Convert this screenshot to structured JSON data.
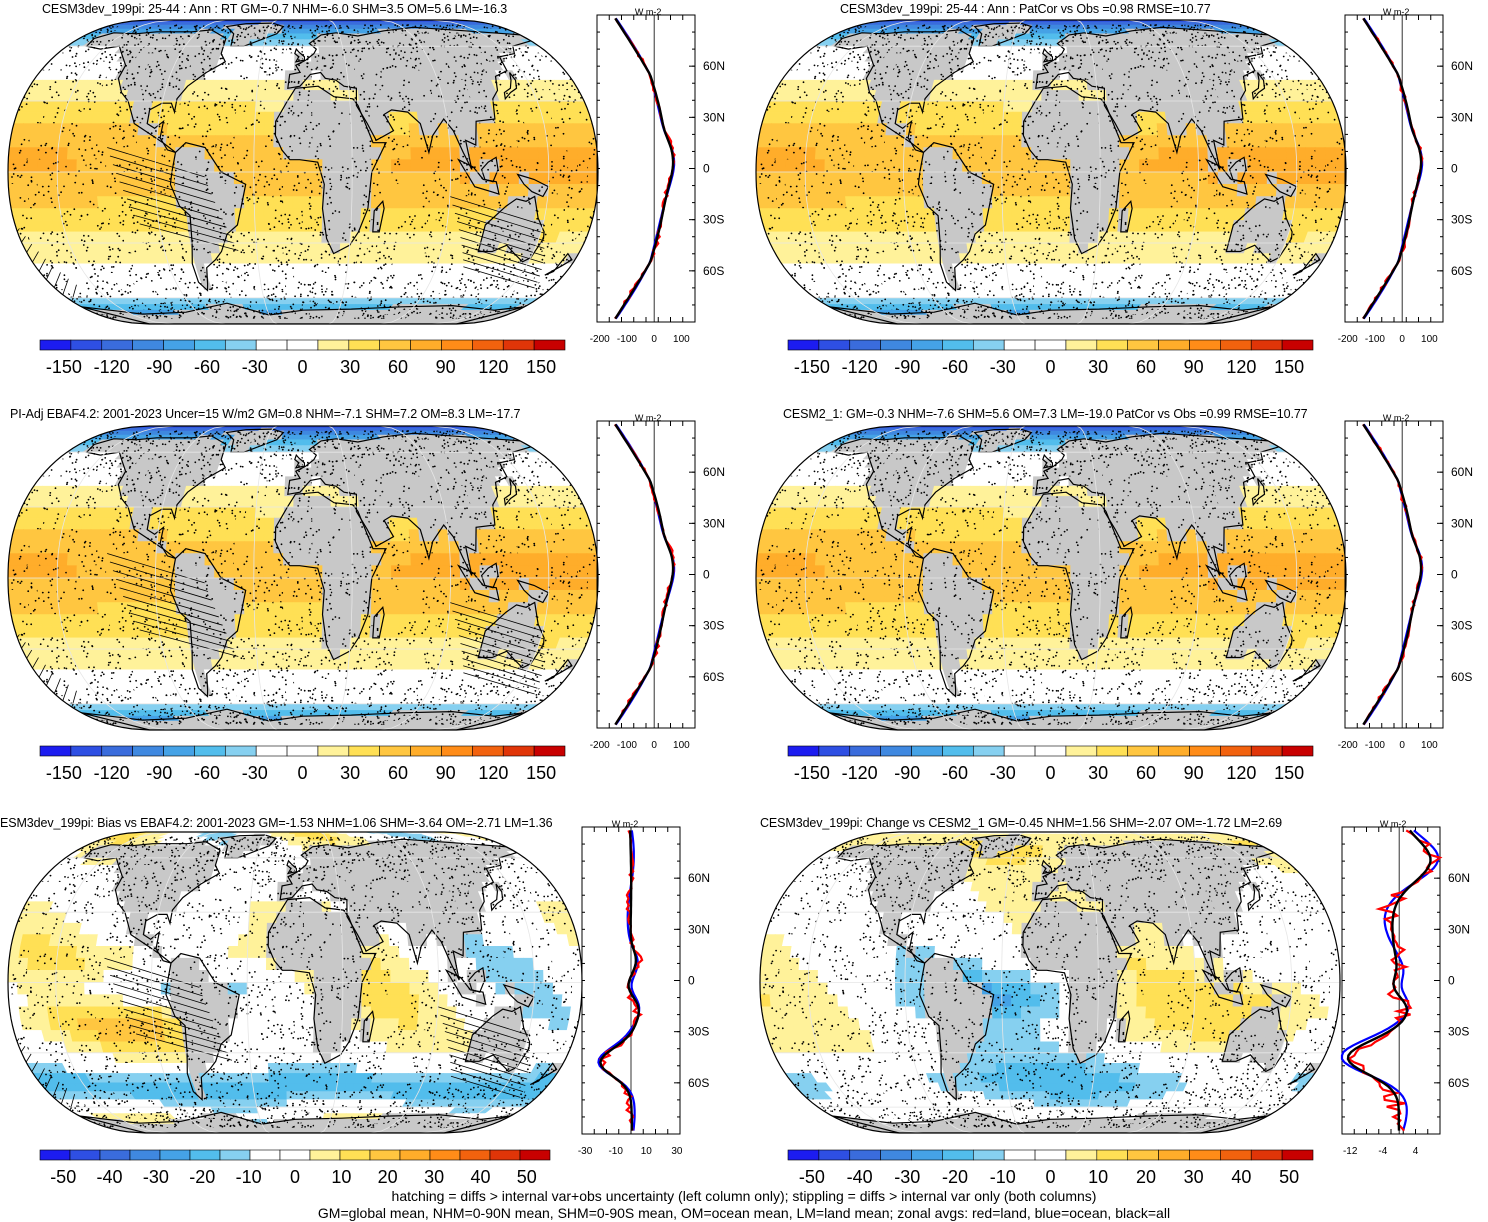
{
  "panels": [
    {
      "title": "CESM3dev_199pi: 25-44 : Ann : RT GM=-0.7 NHM=-6.0 SHM=3.5 OM=5.6 LM=-16.3",
      "colorbar_ticks": [
        "-150",
        "-120",
        "-90",
        "-60",
        "-30",
        "0",
        "30",
        "60",
        "90",
        "120",
        "150"
      ],
      "zonal_xticks": [
        "-200",
        "-100",
        "0",
        "100"
      ],
      "zonal_units": "W m-2",
      "field": "rt",
      "hatch": true,
      "cmap": "main"
    },
    {
      "title": "CESM3dev_199pi: 25-44 : Ann : PatCor vs Obs =0.98 RMSE=10.77",
      "colorbar_ticks": [
        "-150",
        "-120",
        "-90",
        "-60",
        "-30",
        "0",
        "30",
        "60",
        "90",
        "120",
        "150"
      ],
      "zonal_xticks": [
        "-200",
        "-100",
        "0",
        "100"
      ],
      "zonal_units": "W m-2",
      "field": "rt",
      "hatch": false,
      "cmap": "main"
    },
    {
      "title": "PI-Adj EBAF4.2: 2001-2023 Uncer=15 W/m2 GM=0.8 NHM=-7.1 SHM=7.2 OM=8.3 LM=-17.7",
      "colorbar_ticks": [
        "-150",
        "-120",
        "-90",
        "-60",
        "-30",
        "0",
        "30",
        "60",
        "90",
        "120",
        "150"
      ],
      "zonal_xticks": [
        "-200",
        "-100",
        "0",
        "100"
      ],
      "zonal_units": "W m-2",
      "field": "rt",
      "hatch": true,
      "cmap": "main"
    },
    {
      "title": "CESM2_1: GM=-0.3 NHM=-7.6 SHM=5.6 OM=7.3 LM=-19.0 PatCor vs Obs =0.99 RMSE=10.77",
      "colorbar_ticks": [
        "-150",
        "-120",
        "-90",
        "-60",
        "-30",
        "0",
        "30",
        "60",
        "90",
        "120",
        "150"
      ],
      "zonal_xticks": [
        "-200",
        "-100",
        "0",
        "100"
      ],
      "zonal_units": "W m-2",
      "field": "rt",
      "hatch": false,
      "cmap": "main"
    },
    {
      "title": "ESM3dev_199pi: Bias vs EBAF4.2: 2001-2023 GM=-1.53 NHM=1.06 SHM=-3.64 OM=-2.71 LM=1.36",
      "colorbar_ticks": [
        "-50",
        "-40",
        "-30",
        "-20",
        "-10",
        "0",
        "10",
        "20",
        "30",
        "40",
        "50"
      ],
      "zonal_xticks": [
        "-30",
        "-10",
        "10",
        "30"
      ],
      "zonal_units": "W m-2",
      "field": "bias",
      "hatch": true,
      "cmap": "diff"
    },
    {
      "title": "CESM3dev_199pi: Change vs CESM2_1 GM=-0.45 NHM=1.56 SHM=-2.07 OM=-1.72 LM=2.69",
      "colorbar_ticks": [
        "-50",
        "-40",
        "-30",
        "-20",
        "-10",
        "0",
        "10",
        "20",
        "30",
        "40",
        "50"
      ],
      "zonal_xticks": [
        "-12",
        "-4",
        "4"
      ],
      "zonal_units": "W m-2",
      "field": "change",
      "hatch": false,
      "cmap": "diff"
    }
  ],
  "lat_ticks": [
    "60N",
    "30N",
    "0",
    "30S",
    "60S"
  ],
  "footer": {
    "line1": "hatching = diffs > internal var+obs uncertainty (left column only); stippling = diffs > internal var only (both columns)",
    "line2": "GM=global mean, NHM=0-90N mean, SHM=0-90S mean, OM=ocean mean, LM=land mean; zonal avgs: red=land, blue=ocean, black=all"
  },
  "colors": {
    "colormap_colors": [
      "#1c1cf0",
      "#2e4fe3",
      "#3a6cdc",
      "#3f88e0",
      "#45a2e6",
      "#52bdec",
      "#86d0f0",
      "#ffffff",
      "#ffffff",
      "#fff29a",
      "#ffe055",
      "#ffc640",
      "#ffad2a",
      "#ff8c18",
      "#f2620e",
      "#e03508",
      "#c80000"
    ],
    "land": "#c8c8c8",
    "zonal_land": "#ff0000",
    "zonal_ocean": "#0000ff",
    "zonal_all": "#000000"
  }
}
